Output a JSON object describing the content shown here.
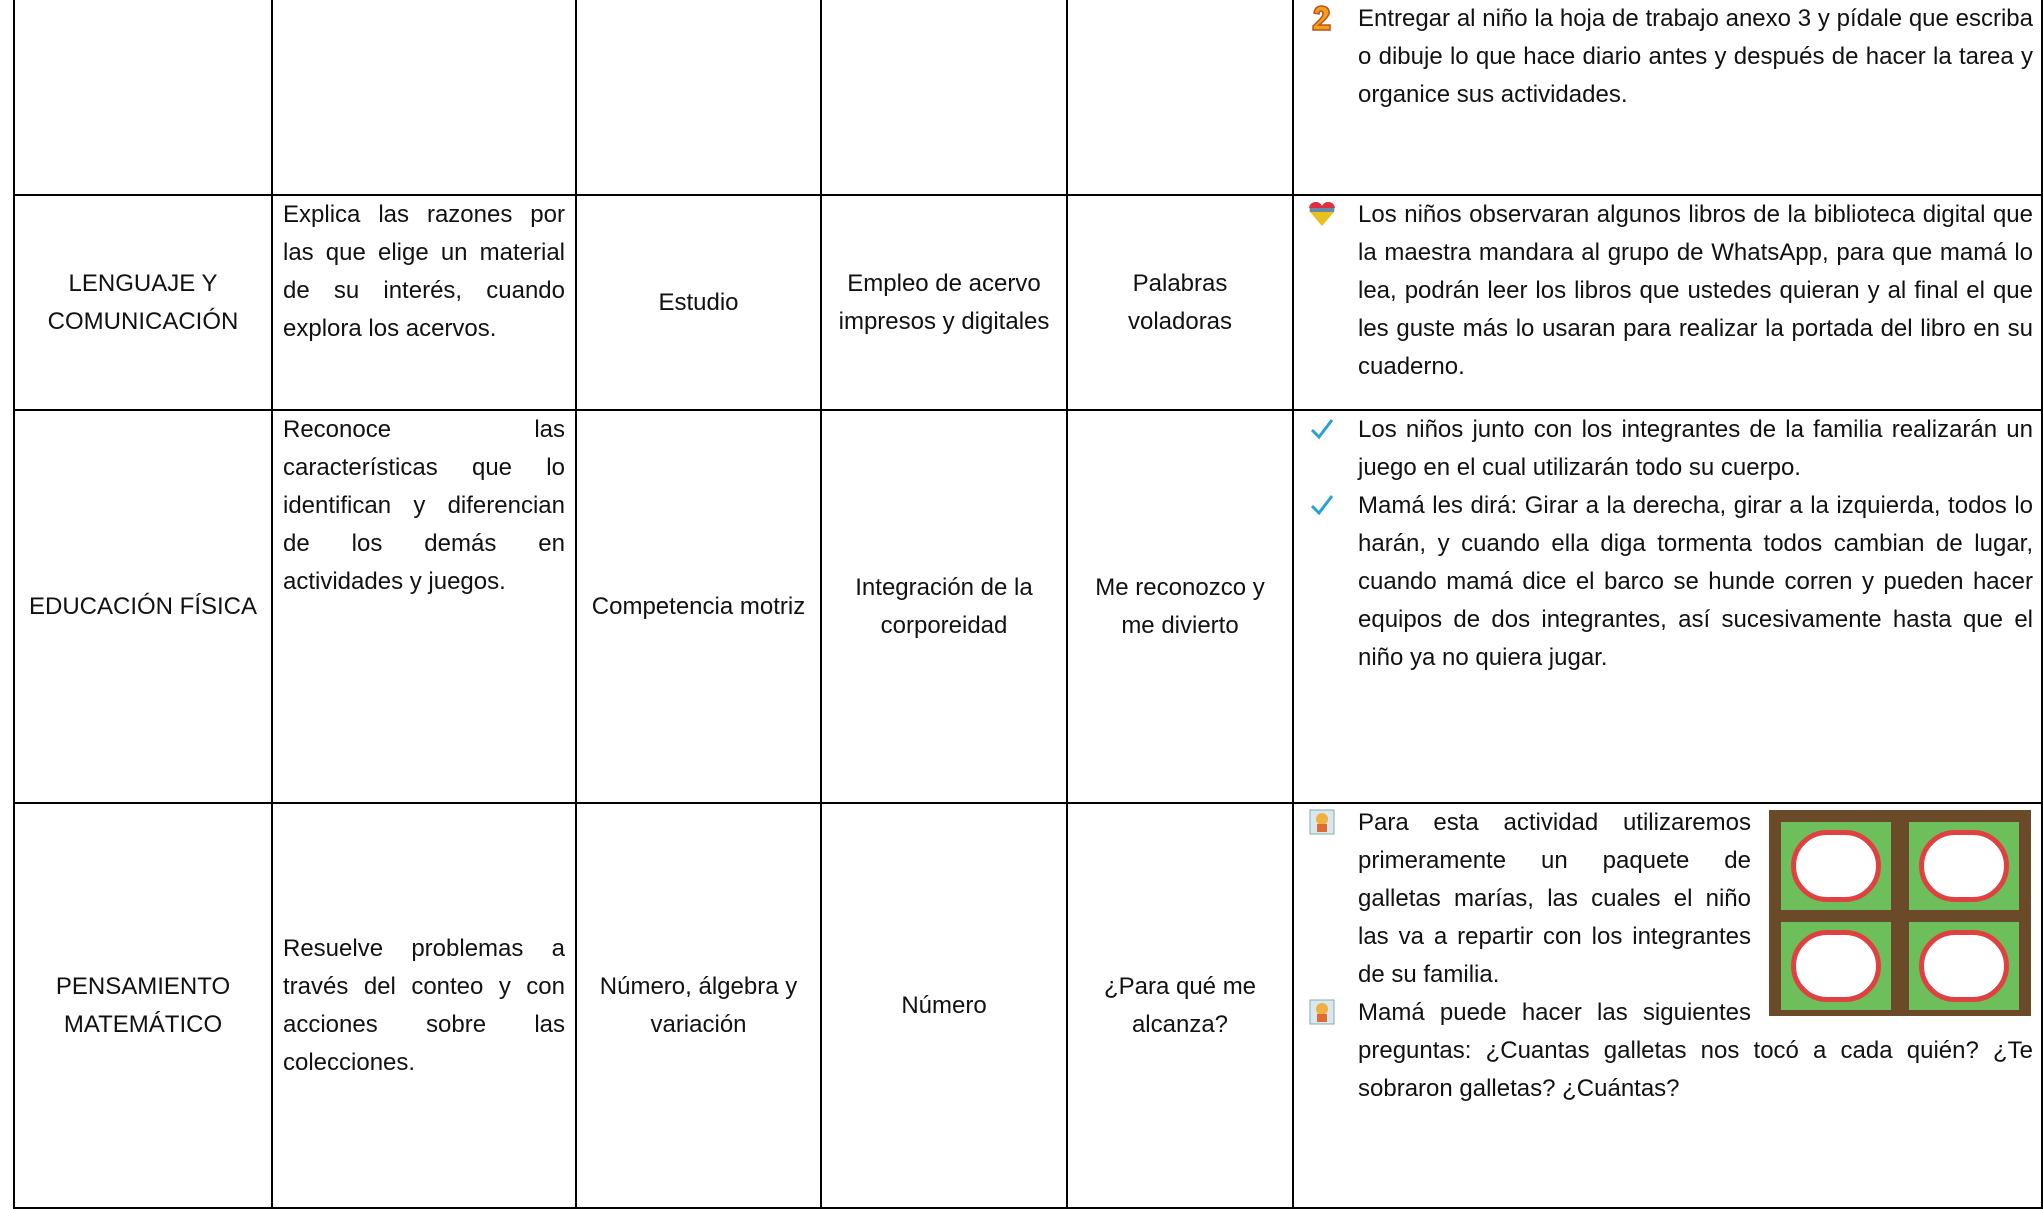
{
  "table": {
    "rows": [
      {
        "actividades": [
          "Entregar al niño la hoja de trabajo anexo 3 y pídale que escriba o dibuje lo que hace diario antes y después de hacer la tarea y organice sus actividades."
        ]
      },
      {
        "area": "LENGUAJE Y COMUNICACIÓN",
        "aprendizaje": "Explica las razones por las que elige un material de su interés, cuando explora los acervos.",
        "organizador_1": "Estudio",
        "organizador_2": "Empleo de acervo impresos y digitales",
        "titulo": "Palabras voladoras",
        "actividades": [
          "Los niños observaran algunos libros de la biblioteca digital que la maestra mandara al grupo de WhatsApp, para que mamá lo lea, podrán leer los libros que ustedes quieran y al final el que les guste más lo usaran para realizar la portada del libro en su cuaderno."
        ]
      },
      {
        "area": "EDUCACIÓN FÍSICA",
        "aprendizaje": "Reconoce las características que lo identifican y diferencian de los demás en actividades y juegos.",
        "organizador_1": "Competencia motriz",
        "organizador_2": "Integración de la corporeidad",
        "titulo": "Me reconozco y me divierto",
        "actividades": [
          "Los niños junto con los integrantes de la familia realizarán un juego en el cual utilizarán todo su cuerpo.",
          "Mamá les dirá: Girar a la derecha, girar a la izquierda, todos lo harán, y cuando ella diga tormenta todos cambian de lugar, cuando mamá dice el barco se hunde corren y pueden hacer equipos de dos integrantes, así sucesivamente hasta que el niño ya no quiera jugar."
        ]
      },
      {
        "area": "PENSAMIENTO MATEMÁTICO",
        "aprendizaje": "Resuelve problemas a través del conteo y con acciones sobre las colecciones.",
        "organizador_1": "Número, álgebra y variación",
        "organizador_2": "Número",
        "titulo": "¿Para qué me alcanza?",
        "actividades": [
          "Para esta actividad utilizaremos primeramente un paquete de galletas marías, las cuales el niño las va a repartir con los integrantes de su familia.",
          "Mamá puede hacer las siguientes preguntas: ¿Cuantas galletas nos tocó a cada quién? ¿Te sobraron galletas? ¿Cuántas?"
        ]
      }
    ]
  }
}
